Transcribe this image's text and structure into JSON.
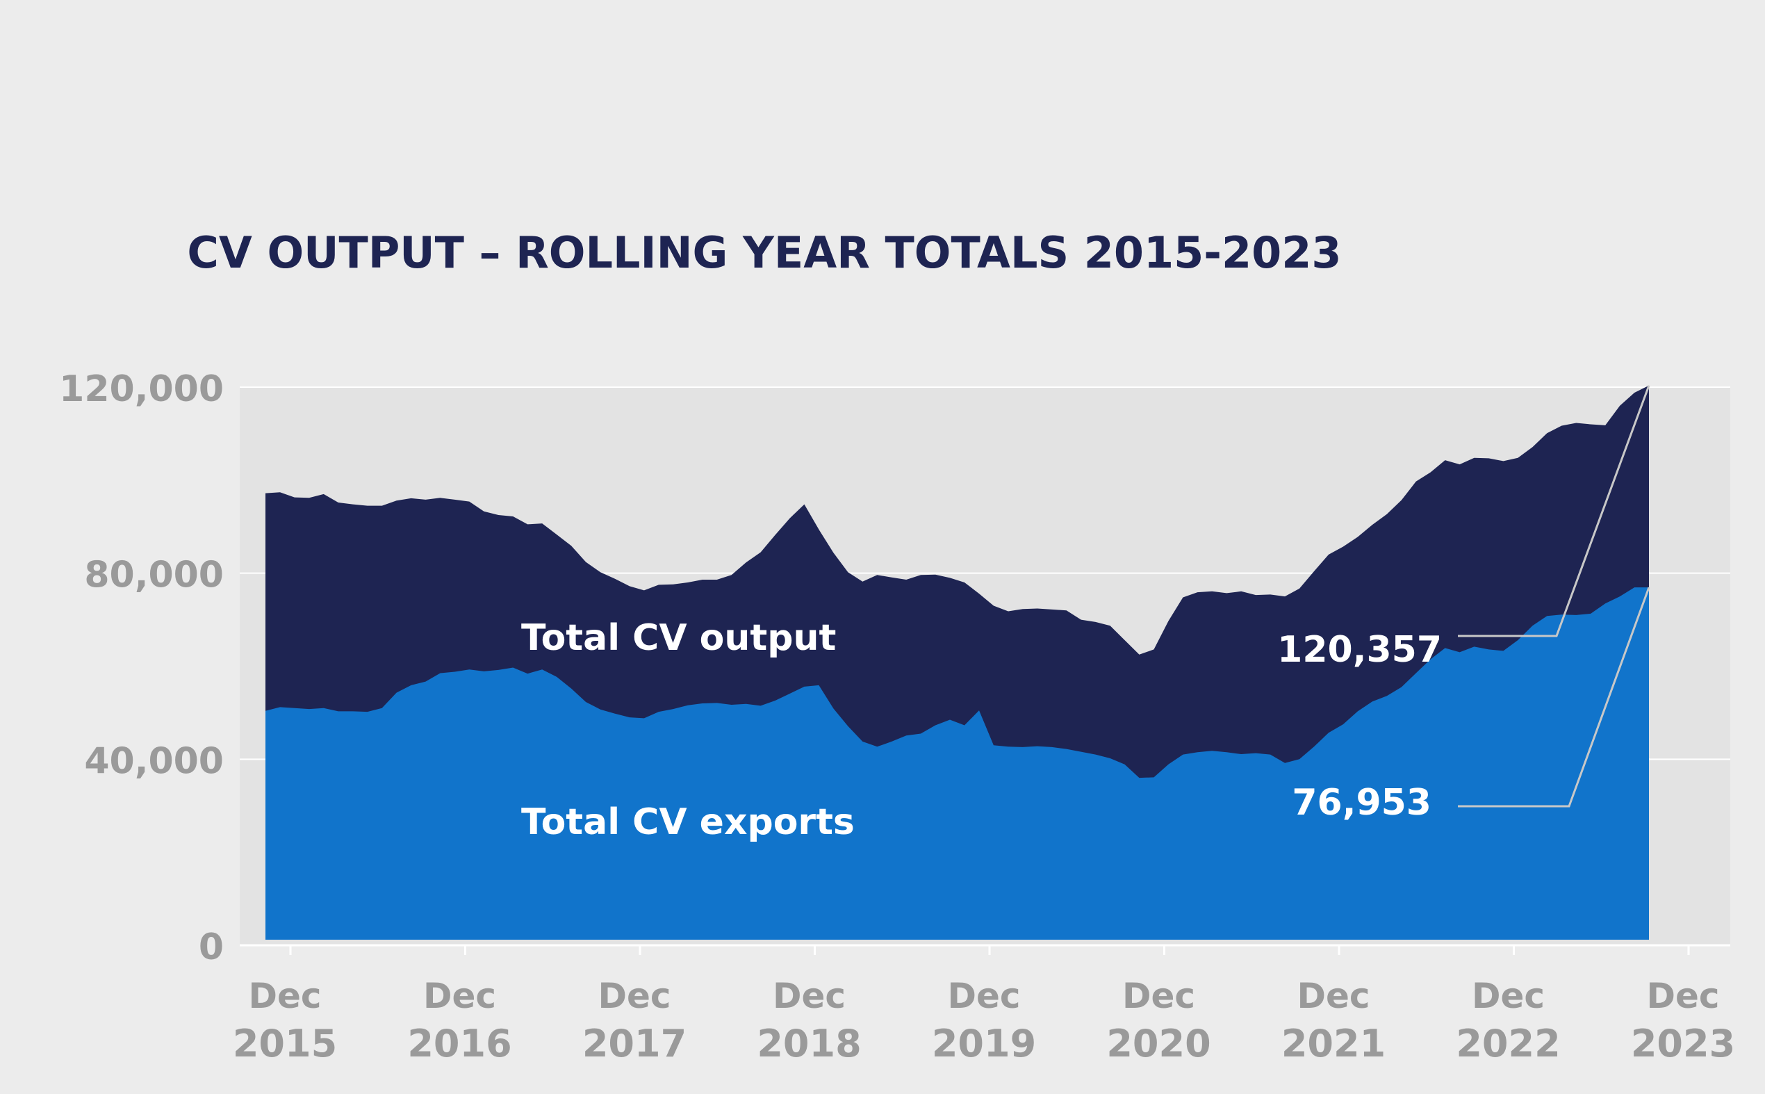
{
  "chart_data": {
    "type": "area",
    "title": "CV OUTPUT – ROLLING YEAR TOTALS 2015-2023",
    "ylim": [
      0,
      120000
    ],
    "yticks": [
      "0",
      "40,000",
      "80,000",
      "120,000"
    ],
    "ytick_values": [
      0,
      40000,
      80000,
      120000
    ],
    "xticks": [
      {
        "month": "Dec",
        "year": "2015"
      },
      {
        "month": "Dec",
        "year": "2016"
      },
      {
        "month": "Dec",
        "year": "2017"
      },
      {
        "month": "Dec",
        "year": "2018"
      },
      {
        "month": "Dec",
        "year": "2019"
      },
      {
        "month": "Dec",
        "year": "2020"
      },
      {
        "month": "Dec",
        "year": "2021"
      },
      {
        "month": "Dec",
        "year": "2022"
      },
      {
        "month": "Dec",
        "year": "2023"
      }
    ],
    "x_start": "Oct 2015",
    "x_end": "Dec 2023",
    "grid": true,
    "colors": {
      "output": "#1e2452",
      "exports": "#1174cb",
      "plot_bg": "#e3e3e3",
      "page_bg": "#ececec",
      "gridline": "#ffffff",
      "leader": "#c8c8c8"
    },
    "series": [
      {
        "name": "Total CV output",
        "end_label": "120,357",
        "values": [
          97200,
          97400,
          96300,
          96200,
          97000,
          95200,
          94800,
          94500,
          94500,
          95600,
          96100,
          95800,
          96200,
          95800,
          95400,
          93300,
          92500,
          92200,
          90500,
          90700,
          88300,
          85900,
          82400,
          80200,
          78800,
          77200,
          76300,
          77500,
          77600,
          78000,
          78600,
          78600,
          79600,
          82300,
          84500,
          88200,
          91800,
          94800,
          89400,
          84400,
          80200,
          78200,
          79600,
          79100,
          78600,
          79600,
          79700,
          79000,
          78000,
          75600,
          73000,
          71800,
          72300,
          72400,
          72200,
          72000,
          70000,
          69500,
          68700,
          65600,
          62500,
          63600,
          69700,
          74800,
          75900,
          76100,
          75700,
          76100,
          75300,
          75400,
          75000,
          76700,
          80400,
          84000,
          85700,
          87800,
          90400,
          92700,
          95700,
          99700,
          101700,
          104300,
          103400,
          104800,
          104700,
          104100,
          104800,
          107100,
          110100,
          111700,
          112300,
          112000,
          111800,
          116000,
          118800,
          120357
        ]
      },
      {
        "name": "Total CV exports",
        "end_label": "76,953",
        "values": [
          50400,
          51200,
          51000,
          50800,
          51000,
          50300,
          50300,
          50200,
          51000,
          54300,
          55900,
          56700,
          58500,
          58800,
          59300,
          58900,
          59200,
          59700,
          58400,
          59300,
          57700,
          55200,
          52300,
          50700,
          49800,
          49000,
          48800,
          50200,
          50800,
          51600,
          52000,
          52100,
          51700,
          51900,
          51500,
          52600,
          54100,
          55600,
          55900,
          50900,
          47100,
          43800,
          42700,
          43800,
          45100,
          45500,
          47300,
          48500,
          47300,
          50500,
          43000,
          42700,
          42600,
          42800,
          42600,
          42200,
          41600,
          41000,
          40200,
          38900,
          36000,
          36100,
          38900,
          41000,
          41500,
          41800,
          41500,
          41100,
          41300,
          41000,
          39200,
          40000,
          42700,
          45700,
          47500,
          50300,
          52400,
          53600,
          55500,
          58500,
          61500,
          63900,
          63000,
          64200,
          63600,
          63300,
          65600,
          68700,
          70800,
          71100,
          71000,
          71300,
          73500,
          75000,
          76953,
          76953
        ]
      }
    ]
  }
}
